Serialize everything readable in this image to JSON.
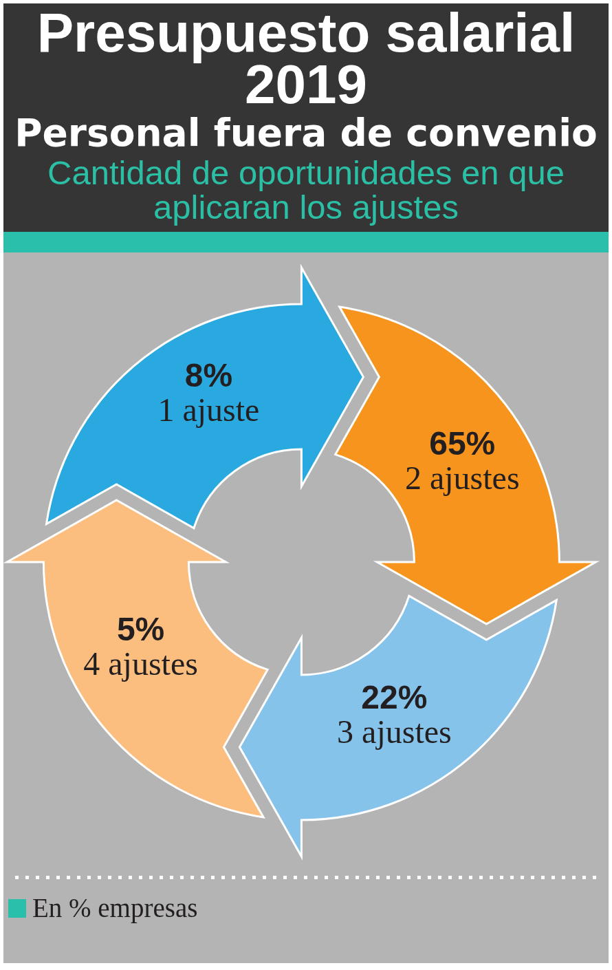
{
  "chart_data": {
    "type": "other",
    "title": "Presupuesto salarial 2019",
    "subtitle": "Personal fuera de convenio",
    "annotations": [
      "Cantidad de oportunidades en que aplicaran los ajustes",
      "En % empresas"
    ],
    "categories": [
      "1 ajuste",
      "2 ajustes",
      "3 ajustes",
      "4 ajustes"
    ],
    "values": [
      8,
      65,
      22,
      5
    ],
    "value_labels": [
      "8%",
      "65%",
      "22%",
      "5%"
    ],
    "colors": [
      "#29a9e0",
      "#f7941d",
      "#85c3eb",
      "#fbbe7e"
    ]
  }
}
